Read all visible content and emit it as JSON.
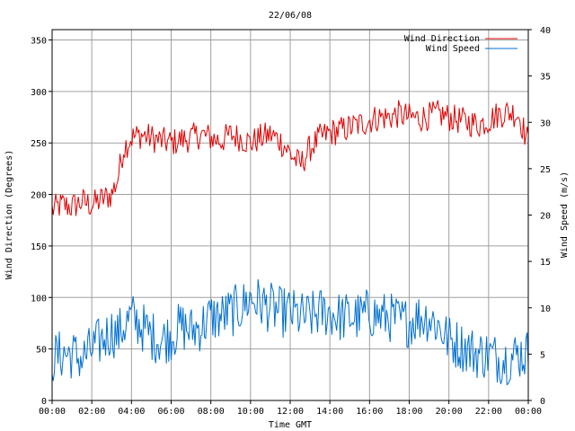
{
  "chart_data": {
    "type": "line",
    "title": "22/06/08",
    "xlabel": "Time GMT",
    "ylabel_left": "Wind Direction (Degrees)",
    "ylabel_right": "Wind Speed (m/s)",
    "x_ticks": [
      "00:00",
      "02:00",
      "04:00",
      "06:00",
      "08:00",
      "10:00",
      "12:00",
      "14:00",
      "16:00",
      "18:00",
      "20:00",
      "22:00",
      "00:00"
    ],
    "x_range_hours": [
      0,
      24
    ],
    "y_left_ticks": [
      "0",
      "50",
      "100",
      "150",
      "200",
      "250",
      "300",
      "350"
    ],
    "y_left_range": [
      0,
      360
    ],
    "y_right_ticks": [
      "0",
      "5",
      "10",
      "15",
      "20",
      "25",
      "30",
      "35",
      "40"
    ],
    "y_right_range": [
      0,
      40
    ],
    "grid": true,
    "legend_position": "top-right",
    "series": [
      {
        "name": "Wind Direction",
        "color": "#e00000",
        "axis": "left",
        "x": [
          0,
          0.5,
          1,
          1.5,
          2,
          2.5,
          3,
          3.3,
          3.6,
          4,
          4.5,
          5,
          5.5,
          6,
          6.5,
          7,
          7.5,
          8,
          8.5,
          9,
          9.5,
          10,
          10.5,
          11,
          11.5,
          12,
          12.5,
          13,
          13.5,
          14,
          14.5,
          15,
          15.5,
          16,
          16.5,
          17,
          17.5,
          18,
          18.5,
          19,
          19.5,
          20,
          20.5,
          21,
          21.5,
          22,
          22.5,
          23,
          23.5,
          24
        ],
        "values": [
          185,
          190,
          188,
          193,
          190,
          195,
          200,
          215,
          245,
          255,
          258,
          255,
          252,
          250,
          253,
          255,
          258,
          255,
          252,
          258,
          255,
          250,
          255,
          258,
          252,
          240,
          228,
          245,
          255,
          260,
          262,
          265,
          268,
          272,
          275,
          275,
          278,
          275,
          274,
          276,
          278,
          275,
          272,
          270,
          268,
          272,
          278,
          280,
          278,
          250
        ]
      },
      {
        "name": "Wind Speed",
        "color": "#0070d0",
        "axis": "right",
        "x": [
          0,
          0.5,
          1,
          1.5,
          2,
          2.5,
          3,
          3.3,
          3.6,
          4,
          4.5,
          5,
          5.5,
          6,
          6.5,
          7,
          7.5,
          8,
          8.5,
          9,
          9.5,
          10,
          10.5,
          11,
          11.5,
          12,
          12.5,
          13,
          13.5,
          14,
          14.5,
          15,
          15.5,
          16,
          16.5,
          17,
          17.5,
          18,
          18.5,
          19,
          19.5,
          20,
          20.5,
          21,
          21.5,
          22,
          22.5,
          23,
          23.5,
          24
        ],
        "values": [
          4.5,
          5,
          5,
          4.5,
          5.5,
          6.5,
          7.5,
          7,
          8,
          9,
          8,
          7,
          6.5,
          7,
          8,
          7.5,
          8,
          9,
          9,
          9.5,
          10,
          11,
          10.5,
          10,
          9.5,
          9.5,
          9,
          9,
          9.5,
          9.5,
          9,
          9,
          9,
          9.5,
          9,
          9,
          8.5,
          8.5,
          9,
          9,
          8,
          6.5,
          6,
          5.5,
          5,
          5,
          4.5,
          4.5,
          5,
          5
        ]
      }
    ]
  }
}
